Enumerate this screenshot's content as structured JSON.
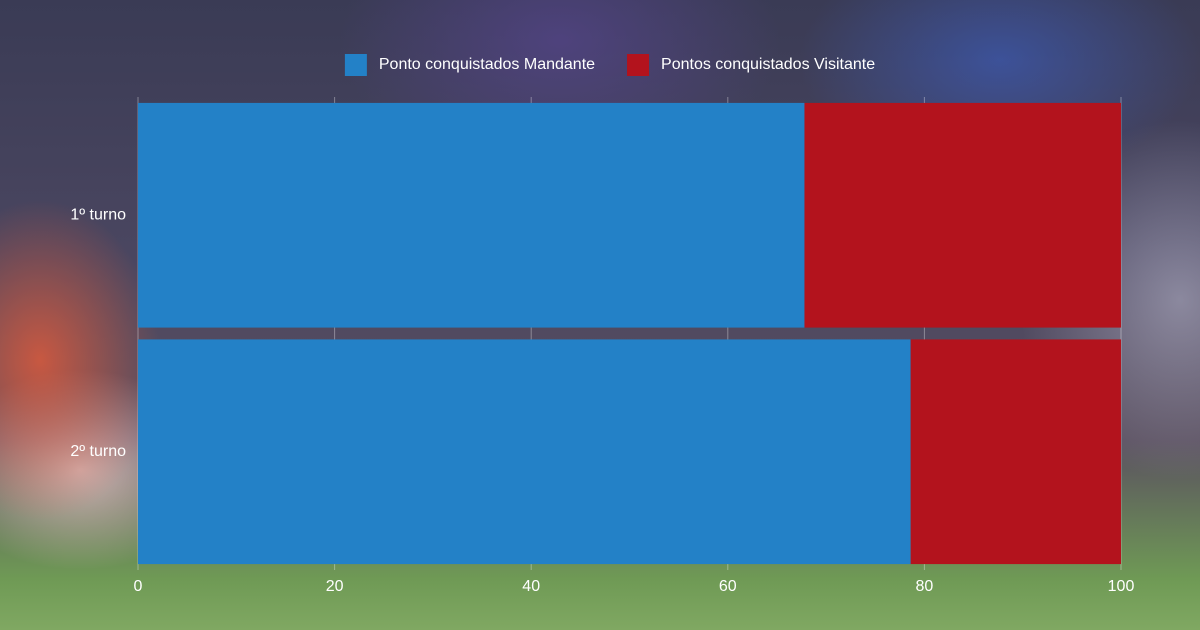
{
  "chart_data": {
    "type": "stacked-bar-horizontal",
    "categories": [
      "1º turno",
      "2º turno"
    ],
    "series": [
      {
        "name": "Ponto conquistados Mandante",
        "color": "#2381c7",
        "values": [
          67.8,
          78.6
        ]
      },
      {
        "name": "Pontos conquistados Visitante",
        "color": "#b3131d",
        "values": [
          32.2,
          21.4
        ]
      }
    ],
    "xlim": [
      0,
      100
    ],
    "xticks": [
      0,
      20,
      40,
      60,
      80,
      100
    ],
    "grid": true,
    "legend": "top"
  }
}
